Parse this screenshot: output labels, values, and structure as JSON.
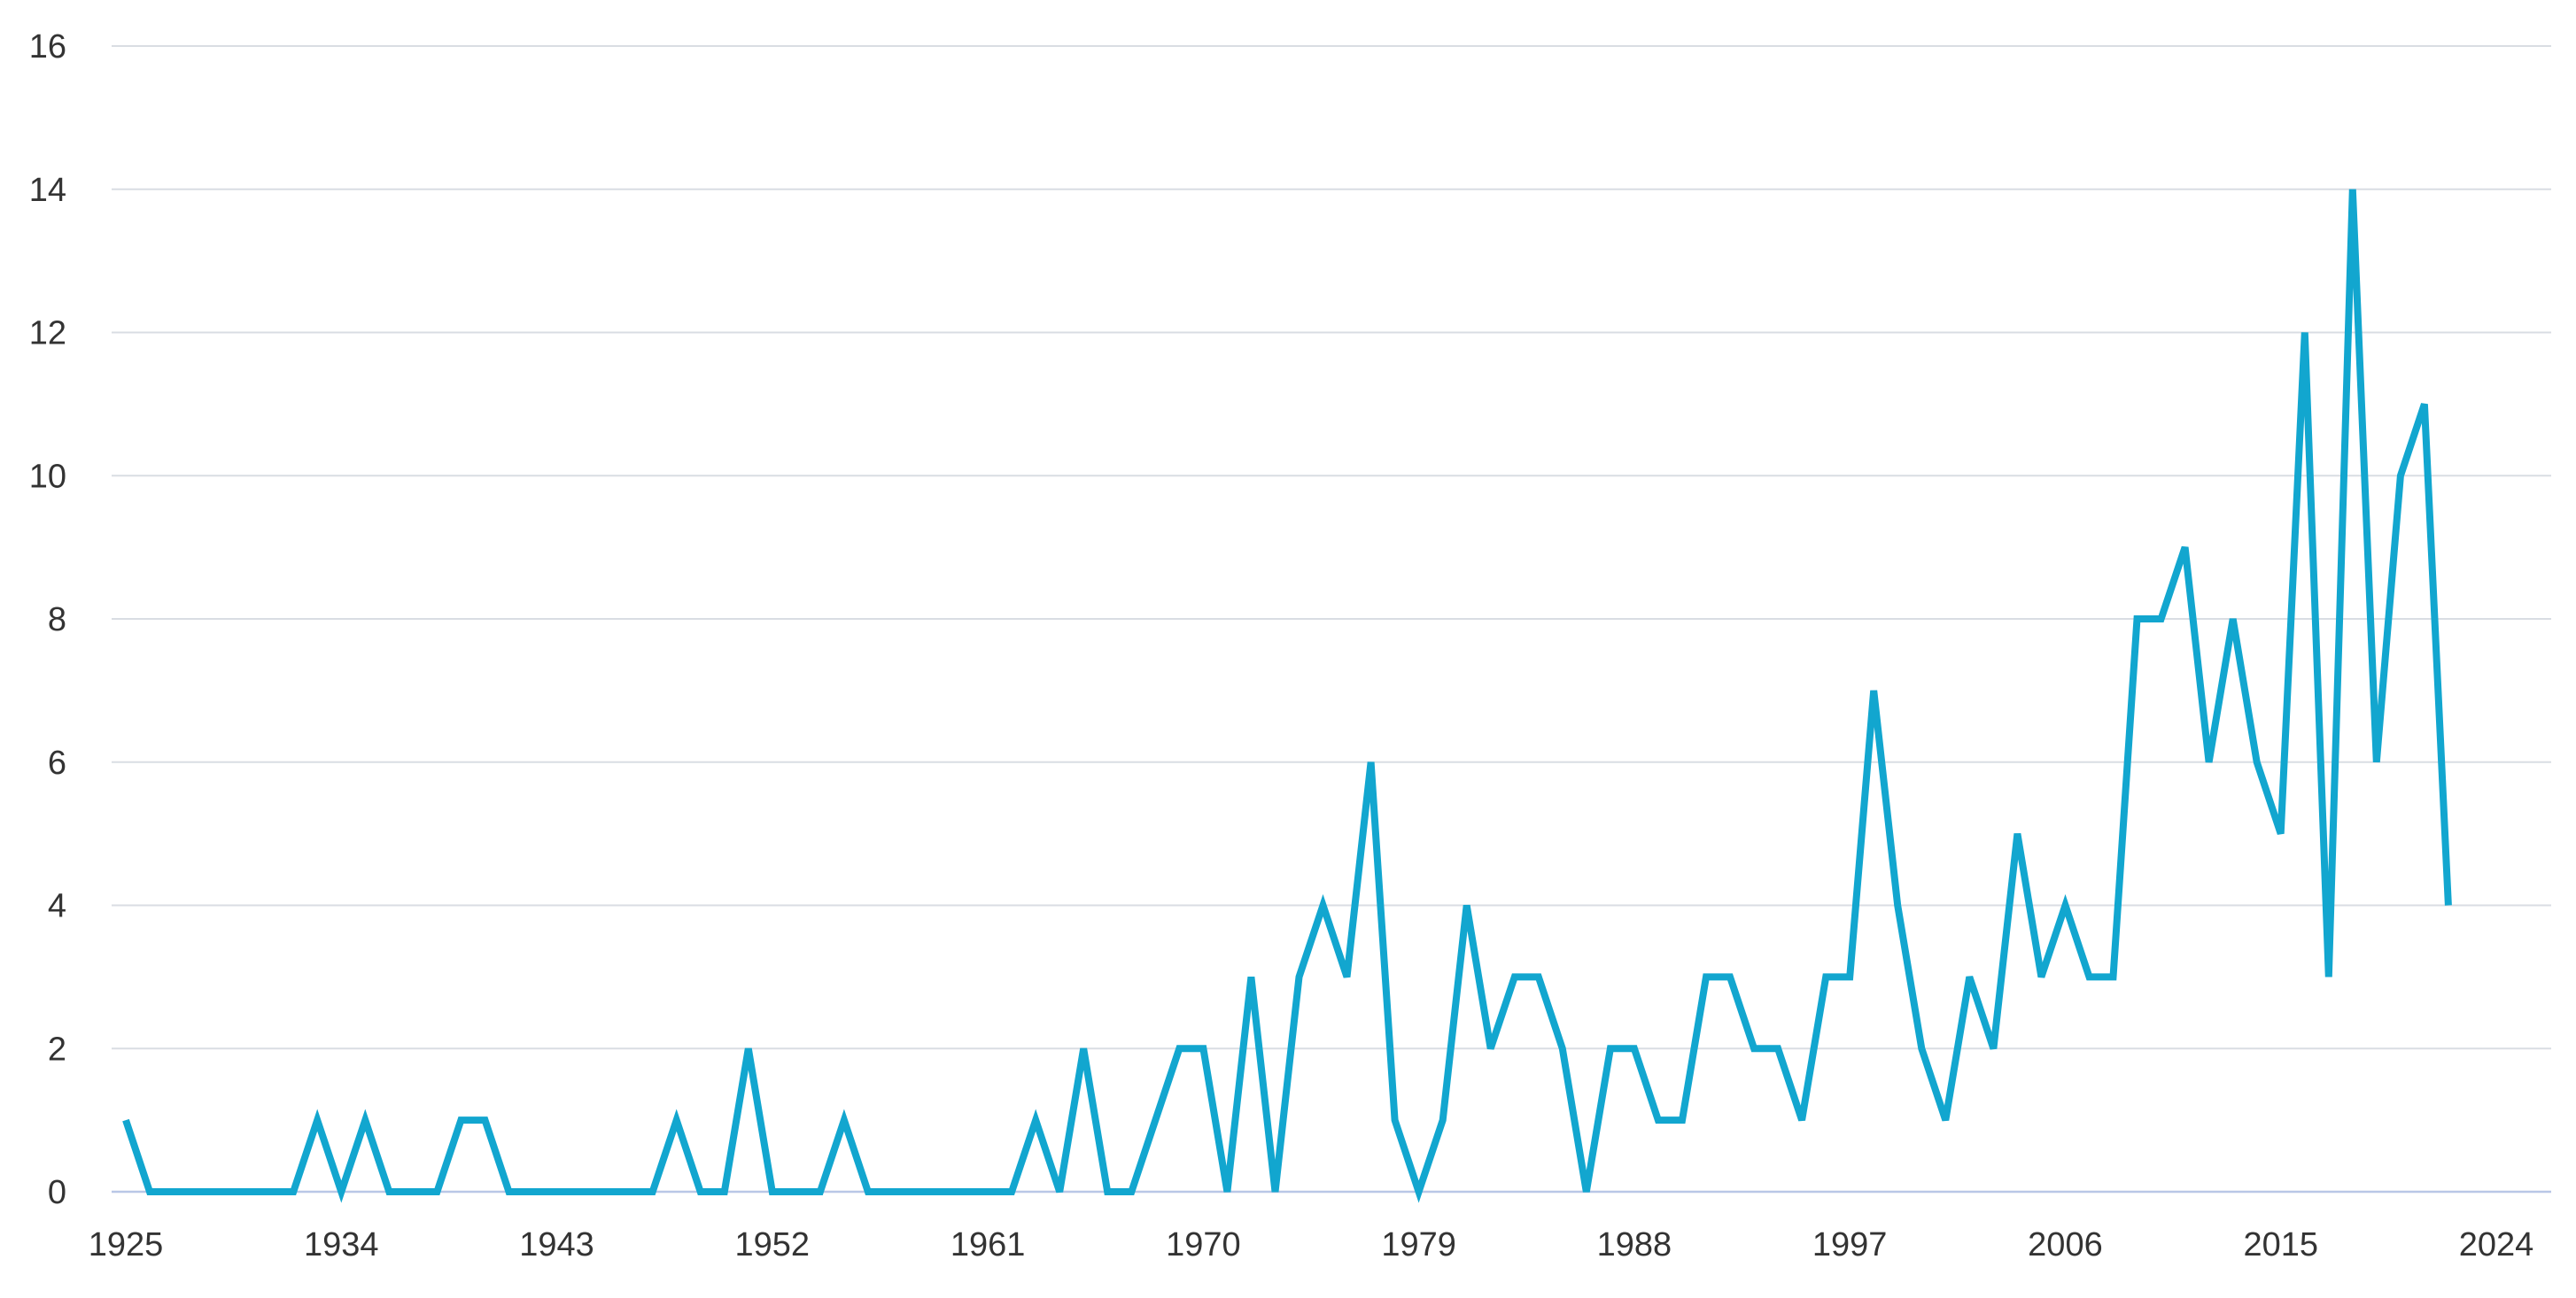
{
  "chart_data": {
    "type": "line",
    "title": "",
    "xlabel": "",
    "ylabel": "",
    "xlim": [
      1925,
      2024
    ],
    "ylim": [
      0,
      16
    ],
    "x_ticks": [
      1925,
      1934,
      1943,
      1952,
      1961,
      1970,
      1979,
      1988,
      1997,
      2006,
      2015,
      2024
    ],
    "y_ticks": [
      0,
      2,
      4,
      6,
      8,
      10,
      12,
      14,
      16
    ],
    "grid": true,
    "legend": "none",
    "series": [
      {
        "color": "#12a6cf",
        "points": [
          [
            1925,
            1
          ],
          [
            1926,
            0
          ],
          [
            1927,
            0
          ],
          [
            1928,
            0
          ],
          [
            1929,
            0
          ],
          [
            1930,
            0
          ],
          [
            1931,
            0
          ],
          [
            1932,
            0
          ],
          [
            1933,
            1
          ],
          [
            1934,
            0
          ],
          [
            1935,
            1
          ],
          [
            1936,
            0
          ],
          [
            1937,
            0
          ],
          [
            1938,
            0
          ],
          [
            1939,
            1
          ],
          [
            1940,
            1
          ],
          [
            1941,
            0
          ],
          [
            1942,
            0
          ],
          [
            1943,
            0
          ],
          [
            1944,
            0
          ],
          [
            1945,
            0
          ],
          [
            1946,
            0
          ],
          [
            1947,
            0
          ],
          [
            1948,
            1
          ],
          [
            1949,
            0
          ],
          [
            1950,
            0
          ],
          [
            1951,
            2
          ],
          [
            1952,
            0
          ],
          [
            1953,
            0
          ],
          [
            1954,
            0
          ],
          [
            1955,
            1
          ],
          [
            1956,
            0
          ],
          [
            1957,
            0
          ],
          [
            1958,
            0
          ],
          [
            1959,
            0
          ],
          [
            1960,
            0
          ],
          [
            1961,
            0
          ],
          [
            1962,
            0
          ],
          [
            1963,
            1
          ],
          [
            1964,
            0
          ],
          [
            1965,
            2
          ],
          [
            1966,
            0
          ],
          [
            1967,
            0
          ],
          [
            1968,
            1
          ],
          [
            1969,
            2
          ],
          [
            1970,
            2
          ],
          [
            1971,
            0
          ],
          [
            1972,
            3
          ],
          [
            1973,
            0
          ],
          [
            1974,
            3
          ],
          [
            1975,
            4
          ],
          [
            1976,
            3
          ],
          [
            1977,
            6
          ],
          [
            1978,
            1
          ],
          [
            1979,
            0
          ],
          [
            1980,
            1
          ],
          [
            1981,
            4
          ],
          [
            1982,
            2
          ],
          [
            1983,
            3
          ],
          [
            1984,
            3
          ],
          [
            1985,
            2
          ],
          [
            1986,
            0
          ],
          [
            1987,
            2
          ],
          [
            1988,
            2
          ],
          [
            1989,
            1
          ],
          [
            1990,
            1
          ],
          [
            1991,
            3
          ],
          [
            1992,
            3
          ],
          [
            1993,
            2
          ],
          [
            1994,
            2
          ],
          [
            1995,
            1
          ],
          [
            1996,
            3
          ],
          [
            1997,
            3
          ],
          [
            1998,
            7
          ],
          [
            1999,
            4
          ],
          [
            2000,
            2
          ],
          [
            2001,
            1
          ],
          [
            2002,
            3
          ],
          [
            2003,
            2
          ],
          [
            2004,
            5
          ],
          [
            2005,
            3
          ],
          [
            2006,
            4
          ],
          [
            2007,
            3
          ],
          [
            2008,
            3
          ],
          [
            2009,
            8
          ],
          [
            2010,
            8
          ],
          [
            2011,
            9
          ],
          [
            2012,
            6
          ],
          [
            2013,
            8
          ],
          [
            2014,
            6
          ],
          [
            2015,
            5
          ],
          [
            2016,
            12
          ],
          [
            2017,
            3
          ],
          [
            2018,
            14
          ],
          [
            2019,
            6
          ],
          [
            2020,
            10
          ],
          [
            2021,
            11
          ],
          [
            2022,
            4
          ]
        ]
      }
    ]
  }
}
